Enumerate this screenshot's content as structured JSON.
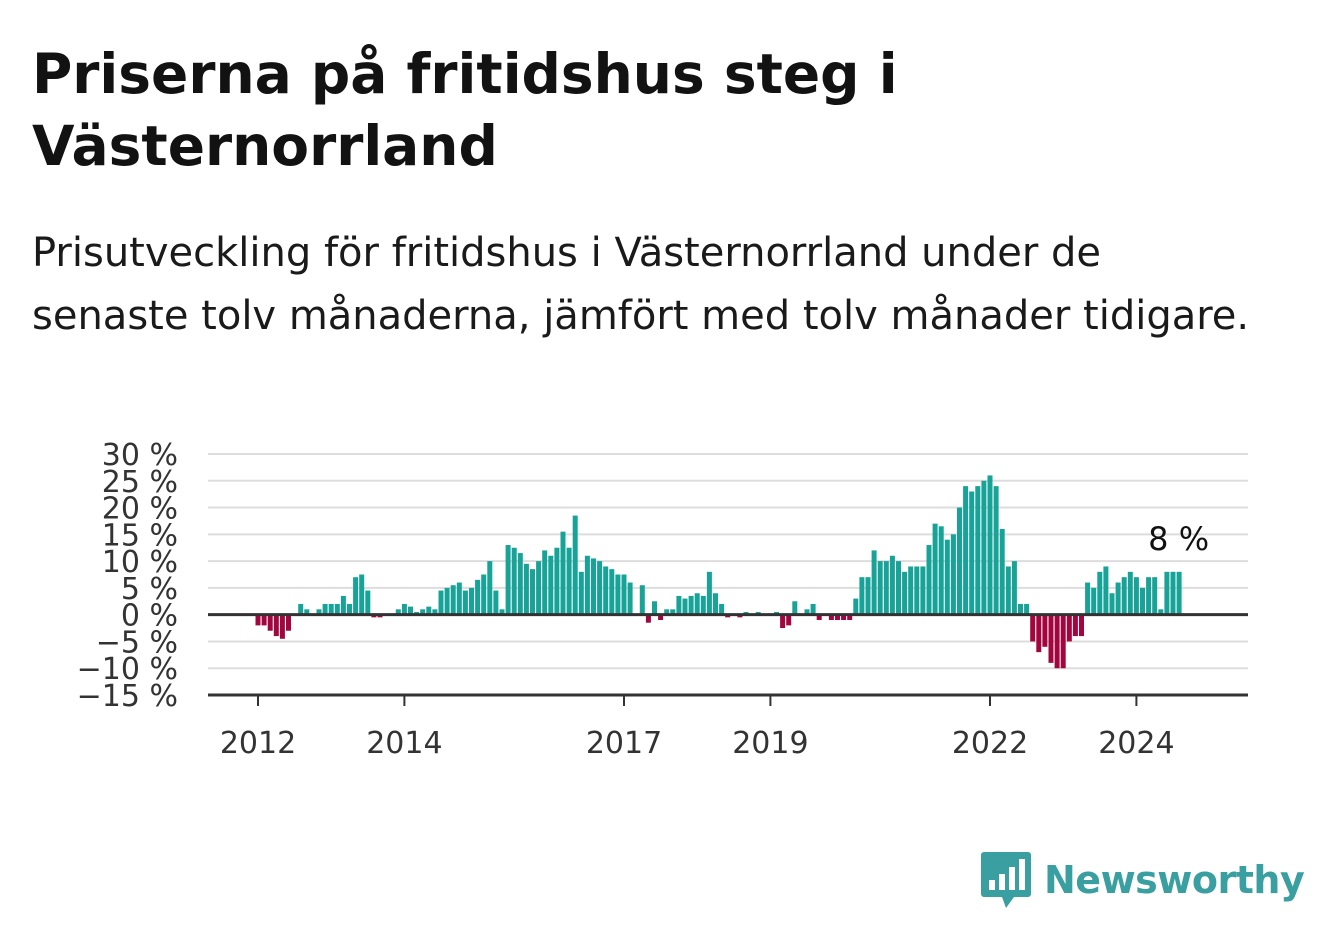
{
  "title": "Priserna på fritidshus steg i Västernorrland",
  "subtitle": "Prisutveckling för fritidshus i Västernorrland under de senaste tolv månaderna, jämfört med tolv månader tidigare.",
  "brand": "Newsworthy",
  "colors": {
    "positive": "#17a398",
    "negative": "#a3053f",
    "grid": "#dddddd",
    "axis": "#333333",
    "brand": "#3a9fa0"
  },
  "chart_data": {
    "type": "bar",
    "title": "Priserna på fritidshus steg i Västernorrland",
    "xlabel": "",
    "ylabel": "",
    "ylim": [
      -15,
      30
    ],
    "y_ticks": [
      30,
      25,
      20,
      15,
      10,
      5,
      0,
      -5,
      -10,
      -15
    ],
    "y_tick_labels": [
      "30 %",
      "25 %",
      "20 %",
      "15 %",
      "10 %",
      "5 %",
      "0 %",
      "−5 %",
      "−10 %",
      "−15 %"
    ],
    "x_tick_labels": [
      "2012",
      "2014",
      "2017",
      "2019",
      "2022",
      "2024"
    ],
    "x_tick_positions": [
      "2012-01",
      "2014-01",
      "2017-01",
      "2019-01",
      "2022-01",
      "2024-01"
    ],
    "start_month": "2012-01",
    "last_label": "8 %",
    "grid": true,
    "values": [
      -2,
      -2,
      -3,
      -4,
      -4.5,
      -3,
      0,
      2,
      1,
      0,
      1,
      2,
      2,
      2,
      3.5,
      2,
      7,
      7.5,
      4.5,
      -0.5,
      -0.5,
      0,
      0,
      1,
      2,
      1.5,
      0.5,
      1,
      1.5,
      1,
      4.5,
      5,
      5.5,
      6,
      4.5,
      5,
      6.5,
      7.5,
      10,
      4.5,
      1,
      13,
      12.5,
      11.5,
      9.5,
      8.5,
      10,
      12,
      11,
      12.5,
      15.5,
      12.5,
      18.5,
      8,
      11,
      10.5,
      10,
      9,
      8.5,
      7.5,
      7.5,
      6,
      0,
      5.5,
      -1.5,
      2.5,
      -1,
      1,
      1,
      3.5,
      3,
      3.5,
      4,
      3.5,
      8,
      4,
      2,
      -0.5,
      0,
      -0.5,
      0.5,
      0,
      0.5,
      0,
      0,
      0.5,
      -2.5,
      -2,
      2.5,
      0,
      1,
      2,
      -1,
      0,
      -1,
      -1,
      -1,
      -1,
      3,
      7,
      7,
      12,
      10,
      10,
      11,
      10,
      8,
      9,
      9,
      9,
      13,
      17,
      16.5,
      14,
      15,
      20,
      24,
      23,
      24,
      25,
      26,
      24,
      16,
      9,
      10,
      2,
      2,
      -5,
      -7,
      -6,
      -9,
      -10,
      -10,
      -5,
      -4,
      -4,
      6,
      5,
      8,
      9,
      4,
      6,
      7,
      8,
      7,
      5,
      7,
      7,
      1,
      8,
      8,
      8
    ]
  }
}
